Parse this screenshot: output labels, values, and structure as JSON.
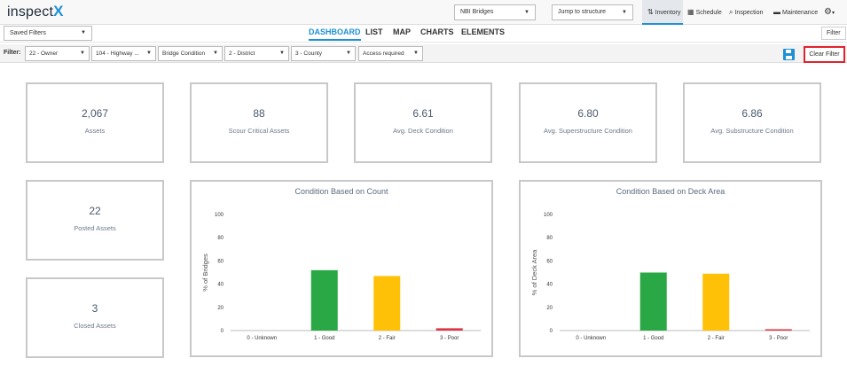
{
  "app": {
    "logo_text": "inspect",
    "logo_x": "X"
  },
  "topbar": {
    "asset_select": "NBI Bridges",
    "jump_select": "Jump to structure",
    "nav": [
      {
        "label": "Inventory",
        "icon": "inventory-icon"
      },
      {
        "label": "Schedule",
        "icon": "calendar-icon"
      },
      {
        "label": "Inspection",
        "icon": "search-icon"
      },
      {
        "label": "Maintenance",
        "icon": "truck-icon"
      }
    ],
    "settings_icon": "gear-icon"
  },
  "bar2": {
    "saved_filters": "Saved Filters",
    "tabs": [
      "DASHBOARD",
      "LIST",
      "MAP",
      "CHARTS",
      "ELEMENTS"
    ],
    "active_tab": "DASHBOARD",
    "filter_button": "Filter"
  },
  "filterbar": {
    "label": "Filter:",
    "filters": [
      "22 - Owner",
      "104 - Highway ...",
      "Bridge Condition",
      "2 - District",
      "3 - County",
      "Access required"
    ],
    "clear_filter": "Clear Filter"
  },
  "stats": [
    {
      "value": "2,067",
      "label": "Assets"
    },
    {
      "value": "88",
      "label": "Scour Critical Assets"
    },
    {
      "value": "6.61",
      "label": "Avg. Deck Condition"
    },
    {
      "value": "6.80",
      "label": "Avg. Superstructure Condition"
    },
    {
      "value": "6.86",
      "label": "Avg. Substructure Condition"
    },
    {
      "value": "22",
      "label": "Posted Assets"
    },
    {
      "value": "3",
      "label": "Closed Assets"
    }
  ],
  "colors": {
    "accent": "#1e90d6",
    "good": "#2aa845",
    "fair": "#ffc107",
    "poor": "#dc3545",
    "highlight": "#e0232c"
  },
  "chart_data": [
    {
      "type": "bar",
      "title": "Condition Based on Count",
      "ylabel": "% of Bridges",
      "xlabel": "",
      "categories": [
        "0 - Unknown",
        "1 - Good",
        "2 - Fair",
        "3 - Poor"
      ],
      "values": [
        0,
        52,
        47,
        2
      ],
      "colors": [
        "#999999",
        "#2aa845",
        "#ffc107",
        "#dc3545"
      ],
      "ylim": [
        0,
        100
      ],
      "yticks": [
        0,
        20,
        40,
        60,
        80,
        100
      ],
      "grid": false
    },
    {
      "type": "bar",
      "title": "Condition Based on Deck Area",
      "ylabel": "% of Deck Area",
      "xlabel": "",
      "categories": [
        "0 - Unknown",
        "1 - Good",
        "2 - Fair",
        "3 - Poor"
      ],
      "values": [
        0,
        50,
        49,
        1
      ],
      "colors": [
        "#999999",
        "#2aa845",
        "#ffc107",
        "#dc3545"
      ],
      "ylim": [
        0,
        100
      ],
      "yticks": [
        0,
        20,
        40,
        60,
        80,
        100
      ],
      "grid": false
    }
  ]
}
